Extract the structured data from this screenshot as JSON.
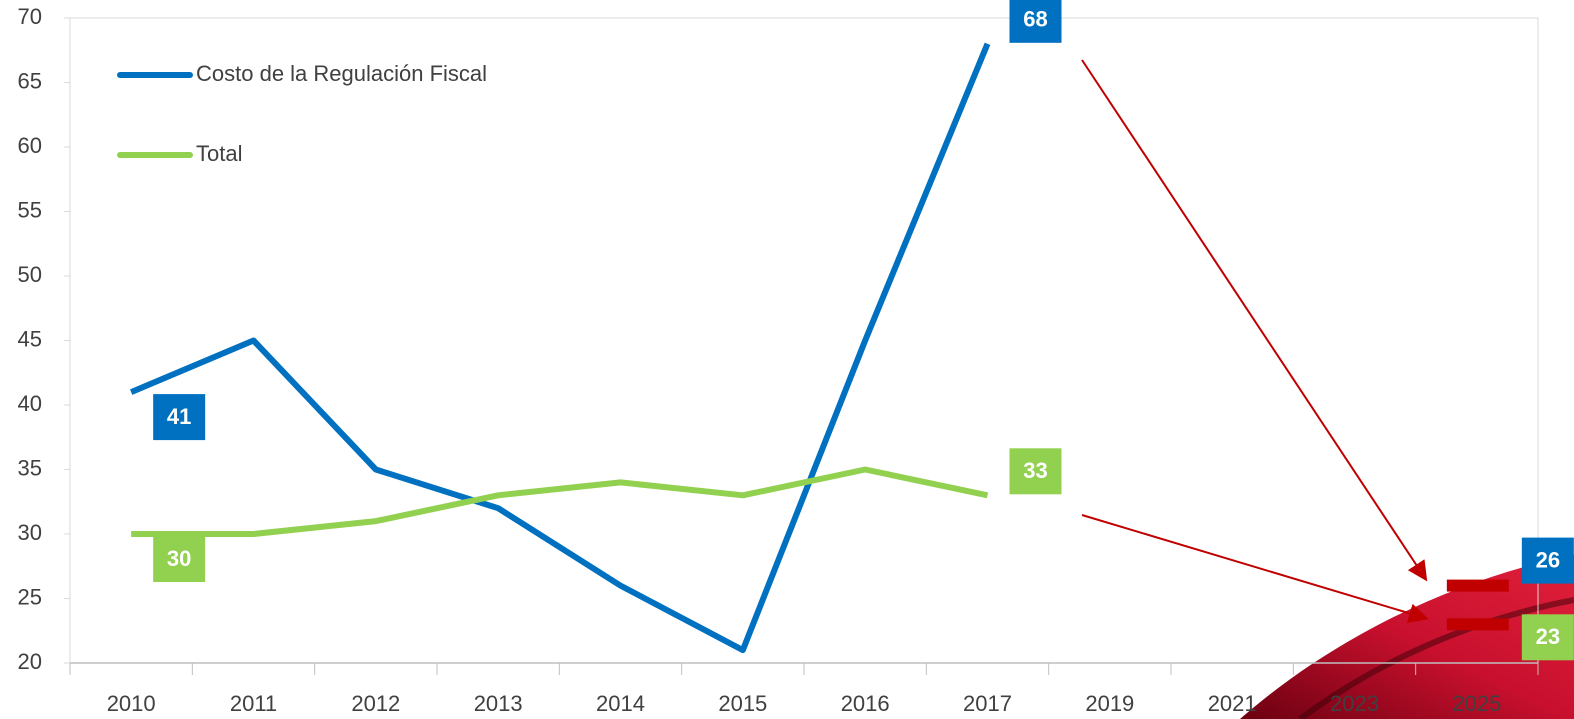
{
  "chart_data": {
    "type": "line",
    "categories": [
      "2010",
      "2011",
      "2012",
      "2013",
      "2014",
      "2015",
      "2016",
      "2017",
      "2019",
      "2021",
      "2023",
      "2025"
    ],
    "series": [
      {
        "name": "Costo de la Regulación Fiscal",
        "color": "#0070c0",
        "values": [
          41,
          45,
          35,
          32,
          26,
          21,
          45,
          68,
          null,
          null,
          null,
          26
        ]
      },
      {
        "name": "Total",
        "color": "#92d050",
        "values": [
          30,
          30,
          31,
          33,
          34,
          33,
          35,
          33,
          null,
          null,
          null,
          23
        ]
      }
    ],
    "ylim": [
      20,
      70
    ],
    "yticks": [
      20,
      25,
      30,
      35,
      40,
      45,
      50,
      55,
      60,
      65,
      70
    ],
    "legend": "upper left",
    "marker_color": "#c00000"
  }
}
